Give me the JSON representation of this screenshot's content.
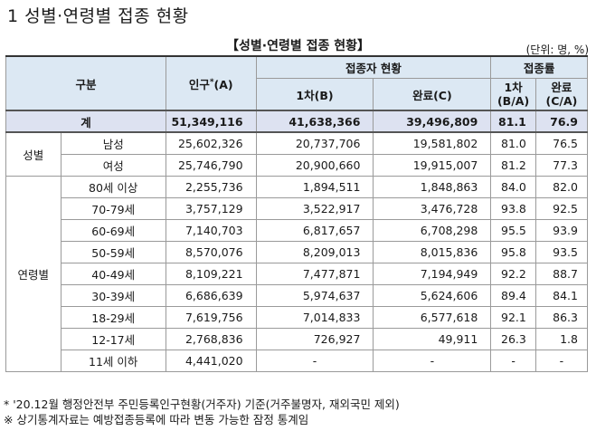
{
  "heading": "1  성별·연령별 접종 현황",
  "table_title": "【성별·연령별 접종 현황】",
  "unit": "(단위: 명, %)",
  "headers": {
    "category": "구분",
    "population": "인구",
    "population_mark": "*",
    "population_suffix": "(A)",
    "vaccinated_group": "접종자 현황",
    "first_dose": "1차(B)",
    "completed": "완료(C)",
    "rate_group": "접종률",
    "first_rate": "1차",
    "first_rate_formula": "(B/A)",
    "completed_rate": "완료",
    "completed_rate_formula": "(C/A)"
  },
  "total": {
    "label": "계",
    "population": "51,349,116",
    "first": "41,638,366",
    "completed": "39,496,809",
    "first_rate": "81.1",
    "completed_rate": "76.9"
  },
  "gender_group": "성별",
  "gender_rows": [
    {
      "label": "남성",
      "population": "25,602,326",
      "first": "20,737,706",
      "completed": "19,581,802",
      "first_rate": "81.0",
      "completed_rate": "76.5"
    },
    {
      "label": "여성",
      "population": "25,746,790",
      "first": "20,900,660",
      "completed": "19,915,007",
      "first_rate": "81.2",
      "completed_rate": "77.3"
    }
  ],
  "age_group": "연령별",
  "age_rows": [
    {
      "label": "80세 이상",
      "population": "2,255,736",
      "first": "1,894,511",
      "completed": "1,848,863",
      "first_rate": "84.0",
      "completed_rate": "82.0"
    },
    {
      "label": "70-79세",
      "population": "3,757,129",
      "first": "3,522,917",
      "completed": "3,476,728",
      "first_rate": "93.8",
      "completed_rate": "92.5"
    },
    {
      "label": "60-69세",
      "population": "7,140,703",
      "first": "6,817,657",
      "completed": "6,708,298",
      "first_rate": "95.5",
      "completed_rate": "93.9"
    },
    {
      "label": "50-59세",
      "population": "8,570,076",
      "first": "8,209,013",
      "completed": "8,015,836",
      "first_rate": "95.8",
      "completed_rate": "93.5"
    },
    {
      "label": "40-49세",
      "population": "8,109,221",
      "first": "7,477,871",
      "completed": "7,194,949",
      "first_rate": "92.2",
      "completed_rate": "88.7"
    },
    {
      "label": "30-39세",
      "population": "6,686,639",
      "first": "5,974,637",
      "completed": "5,624,606",
      "first_rate": "89.4",
      "completed_rate": "84.1"
    },
    {
      "label": "18-29세",
      "population": "7,619,756",
      "first": "7,014,833",
      "completed": "6,577,618",
      "first_rate": "92.1",
      "completed_rate": "86.3"
    },
    {
      "label": "12-17세",
      "population": "2,768,836",
      "first": "726,927",
      "completed": "49,911",
      "first_rate": "26.3",
      "completed_rate": "1.8"
    },
    {
      "label": "11세 이하",
      "population": "4,441,020",
      "first": "-",
      "completed": "-",
      "first_rate": "-",
      "completed_rate": "-"
    }
  ],
  "notes": [
    "* '20.12월 행정안전부 주민등록인구현황(거주자) 기준(거주불명자, 재외국민 제외)",
    "※ 상기통계자료는 예방접종등록에 따라 변동 가능한 잠정 통계임"
  ]
}
